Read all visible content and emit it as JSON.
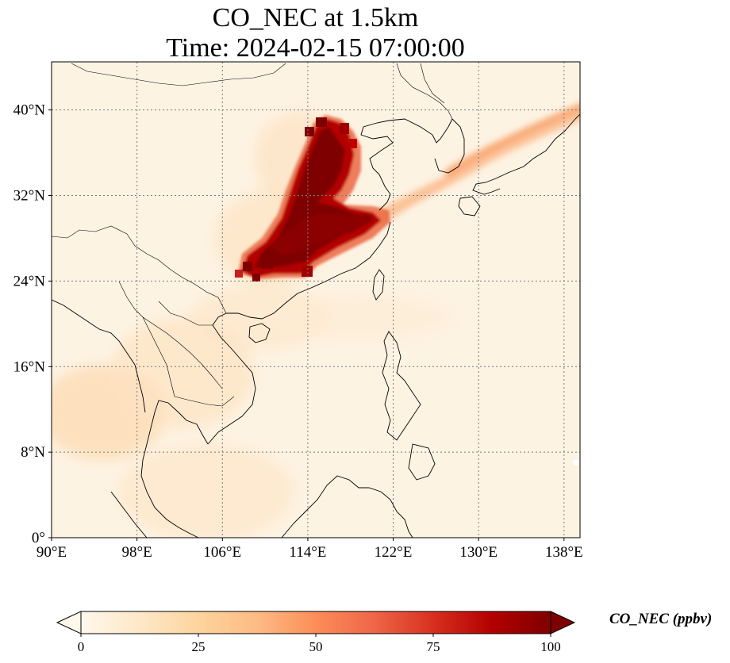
{
  "title": {
    "line1": "CO_NEC at 1.5km",
    "line2": "Time: 2024-02-15 07:00:00"
  },
  "map": {
    "lon_range": [
      90,
      139.5
    ],
    "lat_range": [
      0,
      44.5
    ],
    "lon_ticks": [
      {
        "value": 90,
        "label": "90°E"
      },
      {
        "value": 98,
        "label": "98°E"
      },
      {
        "value": 106,
        "label": "106°E"
      },
      {
        "value": 114,
        "label": "114°E"
      },
      {
        "value": 122,
        "label": "122°E"
      },
      {
        "value": 130,
        "label": "130°E"
      },
      {
        "value": 138,
        "label": "138°E"
      }
    ],
    "lat_ticks": [
      {
        "value": 0,
        "label": "0°"
      },
      {
        "value": 8,
        "label": "8°N"
      },
      {
        "value": 16,
        "label": "16°N"
      },
      {
        "value": 24,
        "label": "24°N"
      },
      {
        "value": 32,
        "label": "32°N"
      },
      {
        "value": 40,
        "label": "40°N"
      }
    ],
    "gridlines": true,
    "projection": "PlateCarree"
  },
  "colorbar": {
    "title": "CO_NEC (ppbv)",
    "colormap": "OrRd",
    "range": [
      0,
      100
    ],
    "extend": "both",
    "ticks": [
      {
        "value": 0,
        "label": "0"
      },
      {
        "value": 25,
        "label": "25"
      },
      {
        "value": 50,
        "label": "50"
      },
      {
        "value": 75,
        "label": "75"
      },
      {
        "value": 100,
        "label": "100"
      }
    ],
    "orientation": "horizontal"
  },
  "colors": {
    "low": "#fff7ec",
    "q1": "#fdd49e",
    "mid": "#fc8d59",
    "q3": "#d7301f",
    "high": "#7f0000",
    "grid": "#7a7a7a",
    "coast": "#000000"
  }
}
